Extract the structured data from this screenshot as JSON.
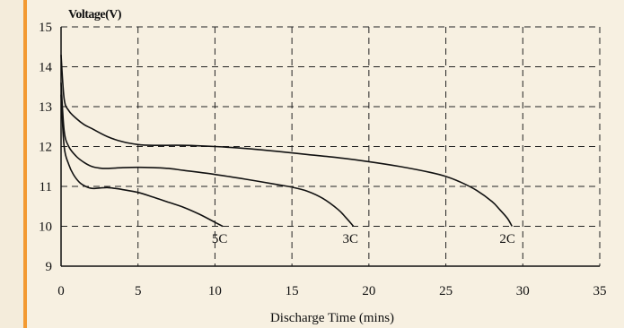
{
  "colors": {
    "background": "#f7f0e1",
    "accent": "#f39a32",
    "line": "#111111",
    "grid": "#222222"
  },
  "chart_data": {
    "type": "line",
    "title": "",
    "ylabel": "Voltage(V)",
    "xlabel": "Discharge Time (mins)",
    "xlim": [
      0,
      35
    ],
    "ylim": [
      9,
      15
    ],
    "xticks": [
      0,
      5,
      10,
      15,
      20,
      25,
      30,
      35
    ],
    "yticks": [
      9,
      10,
      11,
      12,
      13,
      14,
      15
    ],
    "grid": "dashed",
    "series": [
      {
        "name": "5C",
        "x": [
          0,
          0.2,
          0.5,
          0.8,
          1.2,
          1.6,
          2,
          2.5,
          3,
          3.5,
          4,
          5,
          6,
          7,
          8,
          9,
          10,
          10.5
        ],
        "y": [
          13.3,
          12.0,
          11.55,
          11.3,
          11.1,
          11.0,
          10.95,
          10.96,
          10.97,
          10.95,
          10.92,
          10.85,
          10.73,
          10.6,
          10.47,
          10.3,
          10.1,
          10.0
        ]
      },
      {
        "name": "3C",
        "x": [
          0,
          0.2,
          0.5,
          1,
          1.5,
          2,
          2.5,
          3,
          4,
          5,
          6,
          7,
          8,
          10,
          12,
          14,
          15,
          16,
          17,
          18,
          18.5,
          19
        ],
        "y": [
          13.6,
          12.4,
          12.0,
          11.75,
          11.6,
          11.5,
          11.46,
          11.45,
          11.47,
          11.48,
          11.47,
          11.45,
          11.4,
          11.3,
          11.18,
          11.05,
          10.98,
          10.88,
          10.7,
          10.42,
          10.22,
          10.0
        ]
      },
      {
        "name": "2C",
        "x": [
          0,
          0.2,
          0.5,
          1,
          1.5,
          2,
          3,
          4,
          5,
          6,
          8,
          10,
          12,
          14,
          16,
          18,
          20,
          22,
          24,
          25,
          26,
          27,
          28,
          28.5,
          29,
          29.3
        ],
        "y": [
          14.3,
          13.2,
          12.9,
          12.7,
          12.55,
          12.45,
          12.25,
          12.12,
          12.05,
          12.03,
          12.03,
          12.0,
          11.95,
          11.88,
          11.8,
          11.72,
          11.62,
          11.5,
          11.35,
          11.25,
          11.1,
          10.9,
          10.62,
          10.42,
          10.2,
          10.0
        ]
      }
    ],
    "series_label_positions": [
      {
        "name": "5C",
        "x": 10.3,
        "y": 9.7
      },
      {
        "name": "3C",
        "x": 18.8,
        "y": 9.7
      },
      {
        "name": "2C",
        "x": 29.0,
        "y": 9.7
      }
    ]
  }
}
